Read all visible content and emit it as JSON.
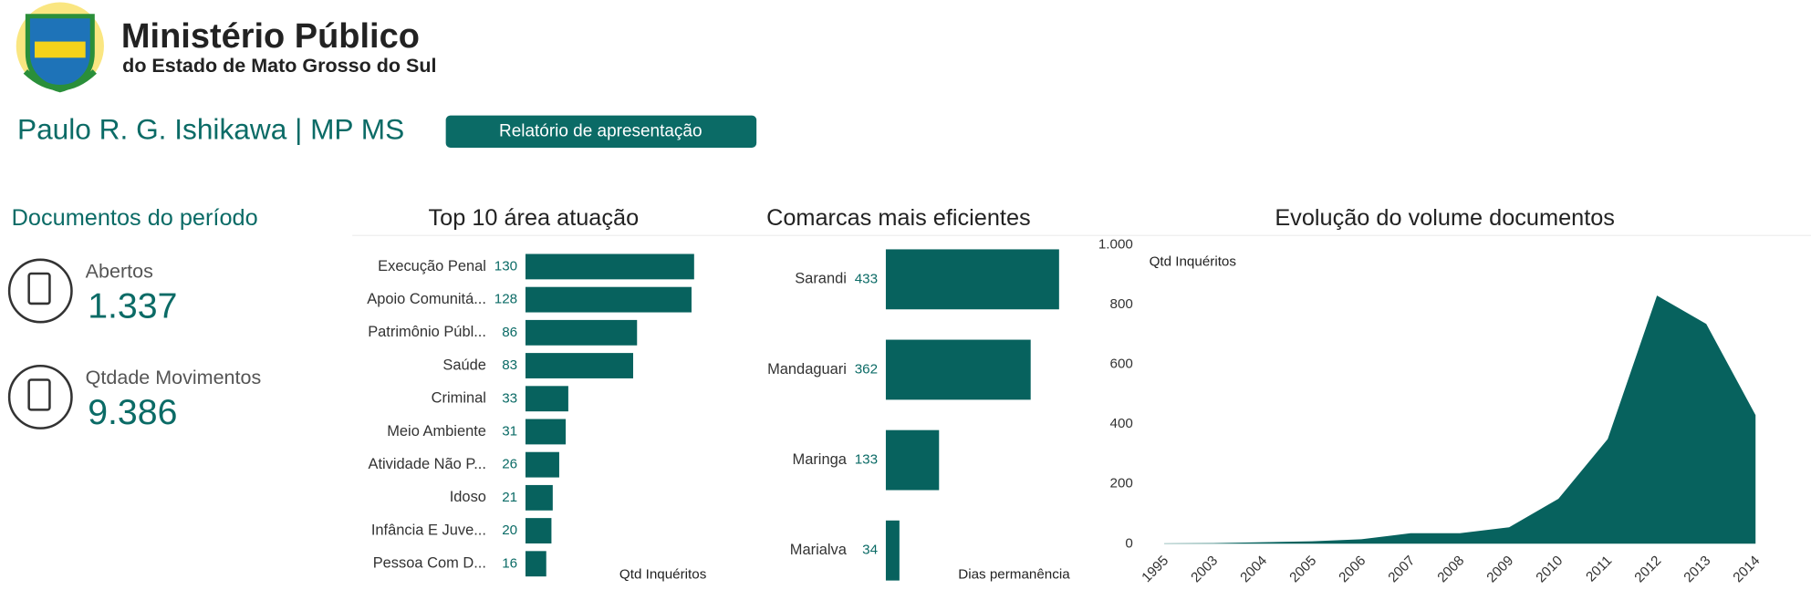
{
  "header": {
    "org": "Ministério Público",
    "org_sub": "do Estado de Mato Grosso do Sul",
    "user": "Paulo R. G. Ishikawa | MP MS",
    "button": "Relatório de apresentação"
  },
  "kpis": {
    "title": "Documentos do período",
    "items": [
      {
        "label": "Abertos",
        "value": "1.337"
      },
      {
        "label": "Qtdade Movimentos",
        "value": "9.386"
      }
    ]
  },
  "chart_data": [
    {
      "type": "hbar",
      "title": "Top 10 área atuação",
      "axis_label": "Qtd Inquéritos",
      "color": "#07625e",
      "categories": [
        "Execução Penal",
        "Apoio Comunitá...",
        "Patrimônio Públ...",
        "Saúde",
        "Criminal",
        "Meio Ambiente",
        "Atividade Não P...",
        "Idoso",
        "Infância E Juve...",
        "Pessoa Com D..."
      ],
      "values": [
        130,
        128,
        86,
        83,
        33,
        31,
        26,
        21,
        20,
        16
      ]
    },
    {
      "type": "hbar",
      "title": "Comarcas mais eficientes",
      "axis_label": "Dias permanência",
      "color": "#07625e",
      "categories": [
        "Sarandi",
        "Mandaguari",
        "Maringa",
        "Marialva"
      ],
      "values": [
        433,
        362,
        133,
        34
      ]
    },
    {
      "type": "area",
      "title": "Evolução do volume documentos",
      "y_label": "Qtd Inquéritos",
      "color": "#07625e",
      "categories": [
        "1995",
        "2003",
        "2004",
        "2005",
        "2006",
        "2007",
        "2008",
        "2009",
        "2010",
        "2011",
        "2012",
        "2013",
        "2014"
      ],
      "values": [
        1,
        2,
        5,
        8,
        15,
        35,
        35,
        55,
        150,
        350,
        830,
        735,
        430
      ],
      "ylim": [
        0,
        1000
      ],
      "yticks": [
        0,
        200,
        400,
        600,
        800,
        {
          "value": 1000,
          "label": "1.000"
        }
      ]
    }
  ]
}
